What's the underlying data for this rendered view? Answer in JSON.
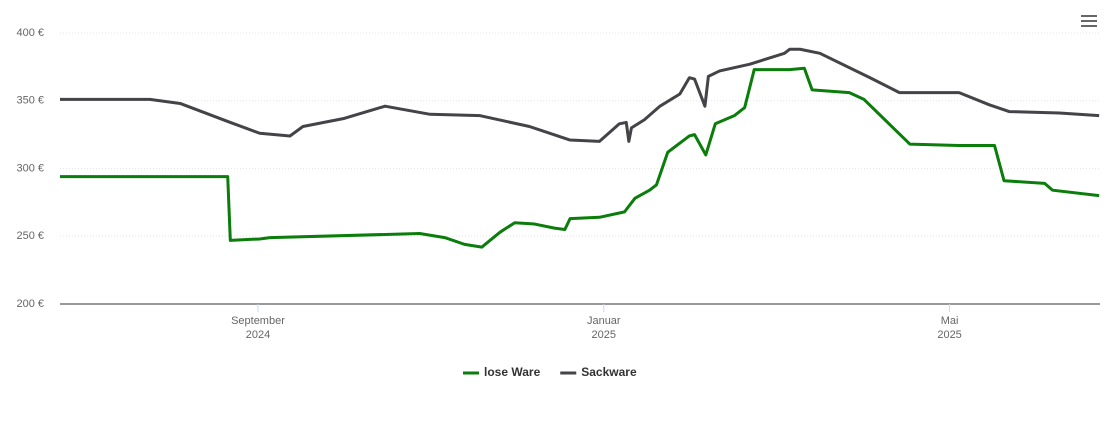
{
  "chart_data": {
    "type": "line",
    "xlim": [
      6.71,
      18.74
    ],
    "xticks": [
      {
        "value": 9,
        "label": [
          "September",
          "2024"
        ]
      },
      {
        "value": 13,
        "label": [
          "Januar",
          "2025"
        ]
      },
      {
        "value": 17,
        "label": [
          "Mai",
          "2025"
        ]
      }
    ],
    "ylim": [
      200,
      400
    ],
    "yticks": [
      {
        "value": 200,
        "label": "200 €"
      },
      {
        "value": 250,
        "label": "250 €"
      },
      {
        "value": 300,
        "label": "300 €"
      },
      {
        "value": 350,
        "label": "350 €"
      },
      {
        "value": 400,
        "label": "400 €"
      }
    ],
    "grid": true,
    "legend": "bottom",
    "series": [
      {
        "name": "lose Ware",
        "color": "#0a7d0a",
        "x": [
          6.71,
          8.65,
          8.68,
          9.02,
          9.14,
          10.87,
          11.16,
          11.39,
          11.59,
          11.8,
          11.97,
          12.2,
          12.43,
          12.55,
          12.61,
          12.95,
          13.24,
          13.36,
          13.53,
          13.61,
          13.74,
          13.99,
          14.05,
          14.18,
          14.29,
          14.51,
          14.63,
          14.74,
          15.15,
          15.32,
          15.41,
          15.84,
          16.01,
          16.54,
          17.11,
          17.52,
          17.63,
          18.1,
          18.19,
          18.73
        ],
        "values": [
          294,
          294,
          247,
          248,
          249,
          252,
          249,
          244,
          242,
          253,
          260,
          259,
          256,
          255,
          263,
          264,
          268,
          278,
          284,
          288,
          312,
          324,
          325,
          310,
          333,
          339,
          345,
          373,
          373,
          374,
          358,
          356,
          351,
          318,
          317,
          317,
          291,
          289,
          284,
          280
        ]
      },
      {
        "name": "Sackware",
        "color": "#434348",
        "x": [
          6.71,
          7.75,
          8.1,
          8.68,
          9.02,
          9.37,
          9.52,
          10.0,
          10.47,
          10.99,
          11.57,
          12.14,
          12.61,
          12.95,
          13.18,
          13.26,
          13.29,
          13.32,
          13.47,
          13.65,
          13.88,
          13.99,
          14.05,
          14.17,
          14.21,
          14.34,
          14.69,
          15.09,
          15.15,
          15.27,
          15.5,
          16.08,
          16.42,
          17.11,
          17.46,
          17.69,
          18.27,
          18.73
        ],
        "values": [
          351,
          351,
          348,
          334,
          326,
          324,
          331,
          337,
          346,
          340,
          339,
          331,
          321,
          320,
          333,
          334,
          320,
          330,
          336,
          346,
          355,
          367,
          366,
          346,
          368,
          372,
          377,
          385,
          388,
          388,
          385,
          367,
          356,
          356,
          347,
          342,
          341,
          339
        ]
      }
    ]
  }
}
